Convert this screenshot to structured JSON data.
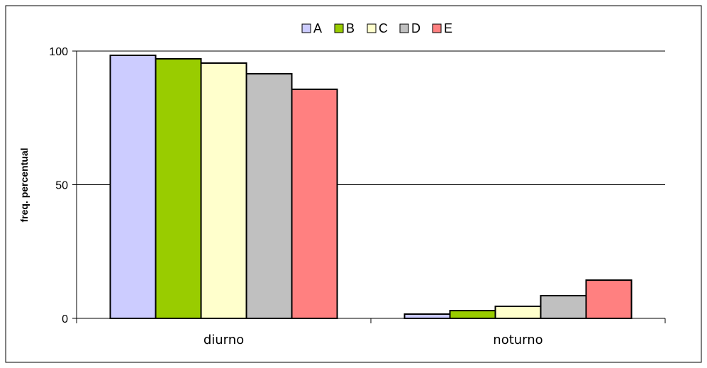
{
  "chart_data": {
    "type": "bar",
    "title": "",
    "xlabel": "",
    "ylabel": "freq. percentual",
    "categories": [
      "diurno",
      "noturno"
    ],
    "ylim": [
      0,
      100
    ],
    "yticks": [
      "0",
      "50",
      "100"
    ],
    "grid": true,
    "legend_position": "top",
    "series": [
      {
        "name": "A",
        "color": "#ccccff",
        "values": [
          98.4,
          1.6
        ]
      },
      {
        "name": "B",
        "color": "#99cc00",
        "values": [
          97.1,
          2.9
        ]
      },
      {
        "name": "C",
        "color": "#ffffcc",
        "values": [
          95.5,
          4.5
        ]
      },
      {
        "name": "D",
        "color": "#c0c0c0",
        "values": [
          91.5,
          8.5
        ]
      },
      {
        "name": "E",
        "color": "#ff8080",
        "values": [
          85.7,
          14.3
        ]
      }
    ]
  }
}
